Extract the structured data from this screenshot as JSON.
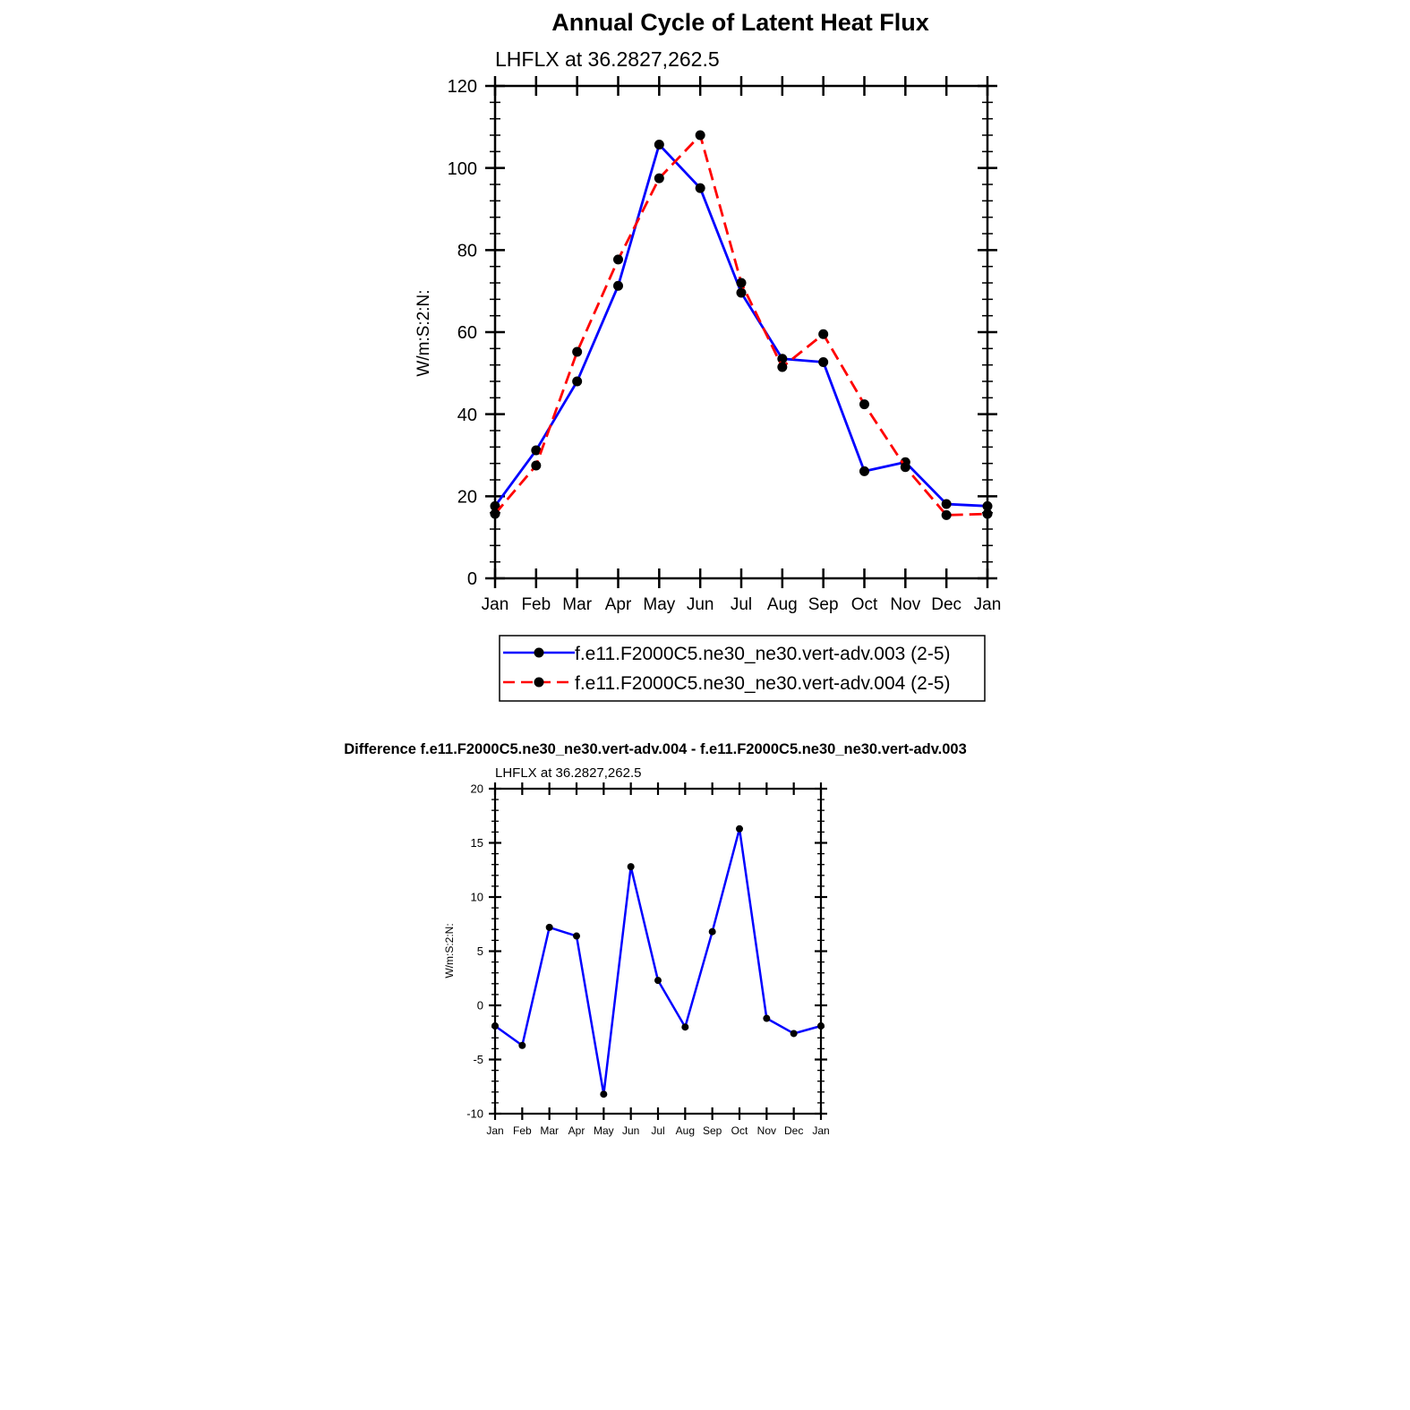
{
  "title": "Annual Cycle of Latent Heat Flux",
  "chart_data": [
    {
      "type": "line",
      "title": "Annual Cycle of Latent Heat Flux",
      "subtitle": "LHFLX at 36.2827,262.5",
      "ylabel": "W/m:S:2:N:",
      "xlabel": "",
      "categories": [
        "Jan",
        "Feb",
        "Mar",
        "Apr",
        "May",
        "Jun",
        "Jul",
        "Aug",
        "Sep",
        "Oct",
        "Nov",
        "Dec",
        "Jan"
      ],
      "ylim": [
        0,
        120
      ],
      "yticks": [
        "0",
        "20",
        "40",
        "60",
        "80",
        "100",
        "120"
      ],
      "legend_placement": "bottom",
      "series": [
        {
          "name": "f.e11.F2000C5.ne30_ne30.vert-adv.003 (2-5)",
          "color": "#0000ff",
          "dash": "solid",
          "marker": "filled-circle",
          "values": [
            17.6,
            31.2,
            48.0,
            71.3,
            105.7,
            95.1,
            69.6,
            53.5,
            52.7,
            26.1,
            28.3,
            18.1,
            17.6
          ]
        },
        {
          "name": "f.e11.F2000C5.ne30_ne30.vert-adv.004 (2-5)",
          "color": "#ff0000",
          "dash": "dashed",
          "marker": "filled-circle",
          "values": [
            15.7,
            27.5,
            55.2,
            77.7,
            97.5,
            108.0,
            72.0,
            51.5,
            59.5,
            42.4,
            27.1,
            15.4,
            15.7
          ]
        }
      ]
    },
    {
      "type": "line",
      "title": "Difference f.e11.F2000C5.ne30_ne30.vert-adv.004 - f.e11.F2000C5.ne30_ne30.vert-adv.003",
      "subtitle": "LHFLX at 36.2827,262.5",
      "ylabel": "W/m:S:2:N:",
      "xlabel": "",
      "categories": [
        "Jan",
        "Feb",
        "Mar",
        "Apr",
        "May",
        "Jun",
        "Jul",
        "Aug",
        "Sep",
        "Oct",
        "Nov",
        "Dec",
        "Jan"
      ],
      "ylim": [
        -10,
        20
      ],
      "yticks": [
        "-10",
        "-5",
        "0",
        "5",
        "10",
        "15",
        "20"
      ],
      "series": [
        {
          "color": "#0000ff",
          "dash": "solid",
          "marker": "filled-circle",
          "values": [
            -1.9,
            -3.7,
            7.2,
            6.4,
            -8.2,
            12.8,
            2.3,
            -2.0,
            6.8,
            16.3,
            -1.2,
            -2.6,
            -1.9
          ]
        }
      ]
    }
  ]
}
